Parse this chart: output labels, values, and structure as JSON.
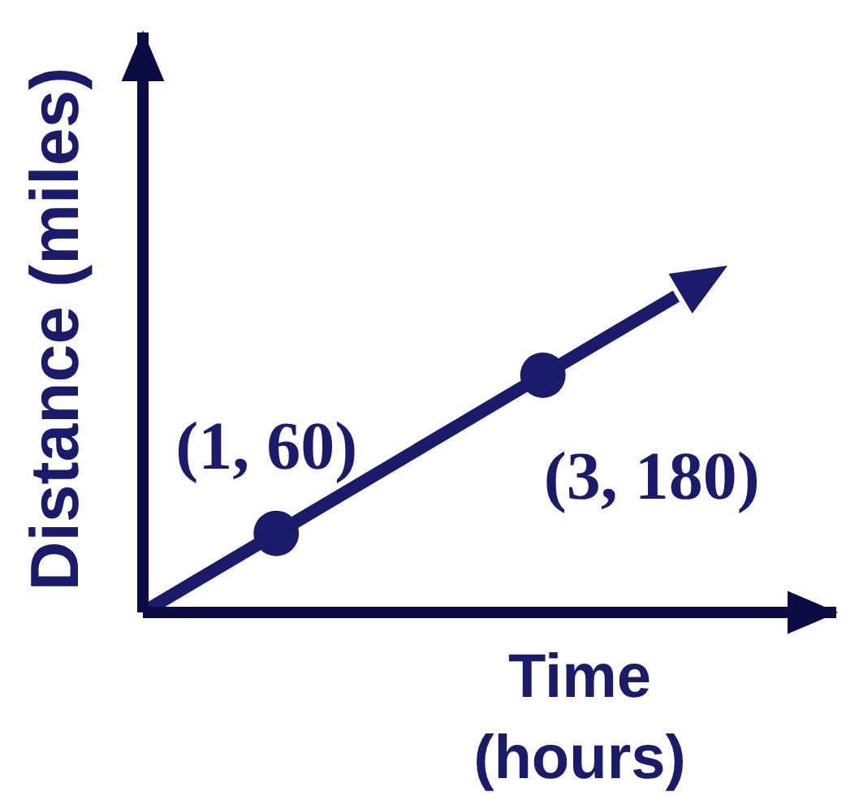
{
  "chart_data": {
    "type": "line",
    "xlabel": "Time (hours)",
    "ylabel": "Distance (miles)",
    "ylim": [
      0,
      440
    ],
    "tick_labels": false,
    "color": "#1b1b6b",
    "categories": [
      null,
      null,
      null,
      null,
      null
    ],
    "values": [
      0,
      60,
      120,
      180,
      240
    ],
    "value_labels": [
      null,
      "(1, 60)",
      null,
      "(3, 180)",
      null
    ]
  }
}
